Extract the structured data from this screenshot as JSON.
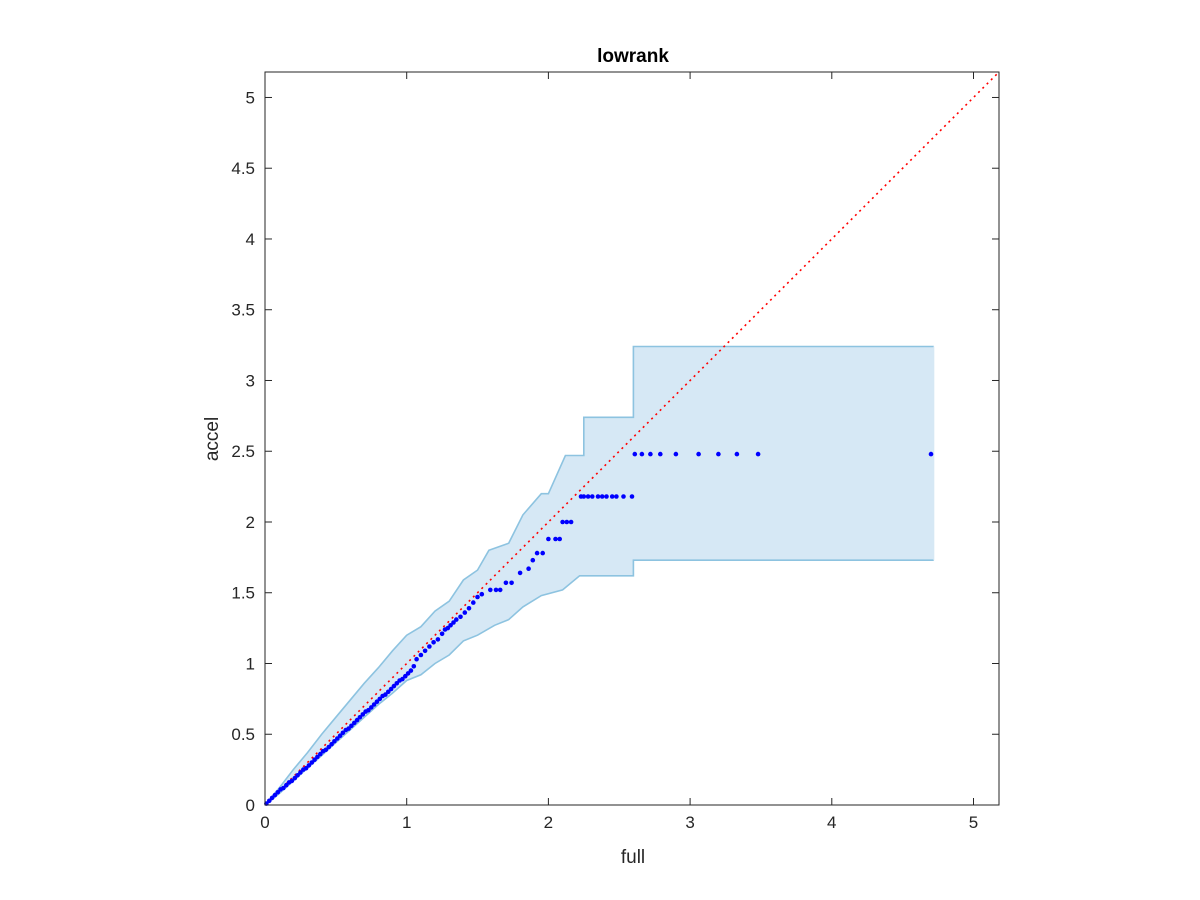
{
  "chart_data": {
    "type": "scatter",
    "title": "lowrank",
    "xlabel": "full",
    "ylabel": "accel",
    "xlim": [
      0,
      5.18
    ],
    "ylim": [
      0,
      5.18
    ],
    "xticks": [
      0,
      1,
      2,
      3,
      4,
      5
    ],
    "yticks": [
      0,
      0.5,
      1,
      1.5,
      2,
      2.5,
      3,
      3.5,
      4,
      4.5,
      5
    ],
    "grid": false,
    "legend": "none",
    "colors": {
      "points": "#0000ff",
      "reference": "#ff0000",
      "band_fill": "#d6e8f5",
      "band_edge": "#8dc3e0",
      "axes": "#262626"
    },
    "reference_line": {
      "x": [
        0,
        5.18
      ],
      "y": [
        0,
        5.18
      ],
      "style": "dotted"
    },
    "band": {
      "upper": [
        [
          0,
          0
        ],
        [
          0.1,
          0.12
        ],
        [
          0.2,
          0.25
        ],
        [
          0.3,
          0.37
        ],
        [
          0.4,
          0.5
        ],
        [
          0.5,
          0.62
        ],
        [
          0.6,
          0.74
        ],
        [
          0.7,
          0.86
        ],
        [
          0.8,
          0.97
        ],
        [
          0.9,
          1.09
        ],
        [
          1.0,
          1.2
        ],
        [
          1.1,
          1.26
        ],
        [
          1.2,
          1.37
        ],
        [
          1.3,
          1.44
        ],
        [
          1.4,
          1.59
        ],
        [
          1.5,
          1.66
        ],
        [
          1.58,
          1.8
        ],
        [
          1.72,
          1.85
        ],
        [
          1.82,
          2.05
        ],
        [
          1.95,
          2.2
        ],
        [
          2.0,
          2.2
        ],
        [
          2.12,
          2.47
        ],
        [
          2.25,
          2.47
        ],
        [
          2.25,
          2.74
        ],
        [
          2.6,
          2.74
        ],
        [
          2.6,
          3.24
        ],
        [
          4.72,
          3.24
        ]
      ],
      "lower": [
        [
          0,
          0
        ],
        [
          0.1,
          0.08
        ],
        [
          0.2,
          0.17
        ],
        [
          0.3,
          0.26
        ],
        [
          0.4,
          0.35
        ],
        [
          0.5,
          0.44
        ],
        [
          0.6,
          0.53
        ],
        [
          0.7,
          0.62
        ],
        [
          0.8,
          0.71
        ],
        [
          0.9,
          0.79
        ],
        [
          1.0,
          0.88
        ],
        [
          1.1,
          0.92
        ],
        [
          1.2,
          1.0
        ],
        [
          1.3,
          1.06
        ],
        [
          1.4,
          1.16
        ],
        [
          1.5,
          1.2
        ],
        [
          1.62,
          1.27
        ],
        [
          1.72,
          1.31
        ],
        [
          1.82,
          1.4
        ],
        [
          1.95,
          1.48
        ],
        [
          2.1,
          1.52
        ],
        [
          2.22,
          1.62
        ],
        [
          2.6,
          1.62
        ],
        [
          2.6,
          1.73
        ],
        [
          4.72,
          1.73
        ]
      ]
    },
    "points_x": [
      0.01,
      0.03,
      0.05,
      0.07,
      0.09,
      0.11,
      0.13,
      0.15,
      0.17,
      0.19,
      0.21,
      0.23,
      0.25,
      0.27,
      0.29,
      0.31,
      0.33,
      0.35,
      0.37,
      0.39,
      0.41,
      0.43,
      0.45,
      0.47,
      0.49,
      0.51,
      0.53,
      0.55,
      0.57,
      0.59,
      0.61,
      0.63,
      0.65,
      0.67,
      0.69,
      0.71,
      0.73,
      0.75,
      0.77,
      0.79,
      0.81,
      0.83,
      0.85,
      0.87,
      0.89,
      0.91,
      0.93,
      0.95,
      0.97,
      0.99,
      1.01,
      1.03,
      1.05,
      1.07,
      1.1,
      1.13,
      1.16,
      1.19,
      1.22,
      1.25,
      1.27,
      1.29,
      1.31,
      1.33,
      1.35,
      1.38,
      1.41,
      1.44,
      1.47,
      1.5,
      1.53,
      1.59,
      1.63,
      1.66,
      1.7,
      1.74,
      1.8,
      1.86,
      1.89,
      1.92,
      1.96,
      2.0,
      2.05,
      2.08,
      2.1,
      2.13,
      2.16,
      2.23,
      2.25,
      2.28,
      2.31,
      2.35,
      2.38,
      2.41,
      2.45,
      2.48,
      2.53,
      2.59,
      2.61,
      2.66,
      2.72,
      2.79,
      2.9,
      3.06,
      3.2,
      3.33,
      3.48,
      4.7
    ],
    "points_y": [
      0.01,
      0.03,
      0.05,
      0.07,
      0.09,
      0.11,
      0.12,
      0.14,
      0.16,
      0.17,
      0.19,
      0.21,
      0.23,
      0.25,
      0.26,
      0.28,
      0.3,
      0.32,
      0.34,
      0.36,
      0.38,
      0.39,
      0.41,
      0.43,
      0.45,
      0.47,
      0.49,
      0.51,
      0.53,
      0.54,
      0.56,
      0.58,
      0.6,
      0.62,
      0.64,
      0.66,
      0.67,
      0.69,
      0.71,
      0.73,
      0.75,
      0.77,
      0.78,
      0.8,
      0.82,
      0.84,
      0.86,
      0.88,
      0.89,
      0.91,
      0.93,
      0.95,
      0.98,
      1.03,
      1.06,
      1.09,
      1.12,
      1.15,
      1.17,
      1.21,
      1.24,
      1.25,
      1.27,
      1.29,
      1.31,
      1.33,
      1.36,
      1.39,
      1.43,
      1.47,
      1.49,
      1.52,
      1.52,
      1.52,
      1.57,
      1.57,
      1.64,
      1.67,
      1.73,
      1.78,
      1.78,
      1.88,
      1.88,
      1.88,
      2.0,
      2.0,
      2.0,
      2.18,
      2.18,
      2.18,
      2.18,
      2.18,
      2.18,
      2.18,
      2.18,
      2.18,
      2.18,
      2.18,
      2.48,
      2.48,
      2.48,
      2.48,
      2.48,
      2.48,
      2.48,
      2.48,
      2.48,
      2.48
    ]
  }
}
